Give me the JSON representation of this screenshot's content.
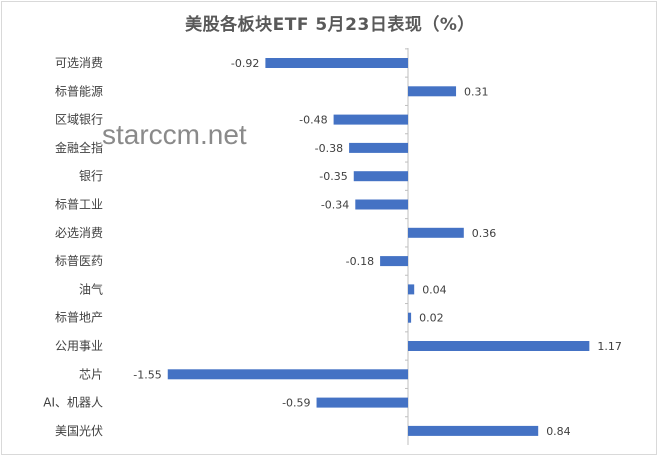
{
  "watermark": "starccm.net",
  "colors": {
    "bar": "#4472C4",
    "axis": "#bfbfbf",
    "text": "#404040",
    "title": "#595959"
  },
  "chart_data": {
    "type": "bar",
    "orientation": "horizontal",
    "title": "美股各板块ETF  5月23日表现（%）",
    "xlabel": "",
    "ylabel": "",
    "xlim": [
      -1.8,
      1.4
    ],
    "grid": false,
    "legend": "none",
    "categories": [
      "可选消费",
      "标普能源",
      "区域银行",
      "金融全指",
      "银行",
      "标普工业",
      "必选消费",
      "标普医药",
      "油气",
      "标普地产",
      "公用事业",
      "芯片",
      "AI、机器人",
      "美国光伏"
    ],
    "values": [
      -0.92,
      0.31,
      -0.48,
      -0.38,
      -0.35,
      -0.34,
      0.36,
      -0.18,
      0.04,
      0.02,
      1.17,
      -1.55,
      -0.59,
      0.84
    ],
    "value_labels": [
      "-0.92",
      "0.31",
      "-0.48",
      "-0.38",
      "-0.35",
      "-0.34",
      "0.36",
      "-0.18",
      "0.04",
      "0.02",
      "1.17",
      "-1.55",
      "-0.59",
      "0.84"
    ]
  }
}
